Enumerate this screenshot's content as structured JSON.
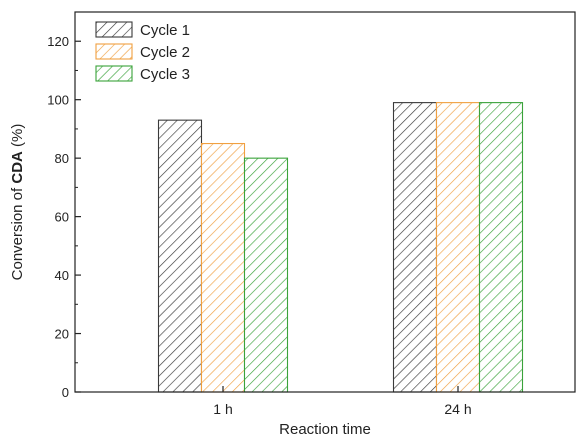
{
  "chart_data": {
    "type": "bar",
    "xlabel": "Reaction time",
    "ylabel_parts": [
      "Conversion of ",
      "CDA",
      " (%)"
    ],
    "categories": [
      "1 h",
      "24 h"
    ],
    "series": [
      {
        "name": "Cycle 1",
        "values": [
          93,
          99
        ],
        "color": "#3a3a3a"
      },
      {
        "name": "Cycle 2",
        "values": [
          85,
          99
        ],
        "color": "#f0a040"
      },
      {
        "name": "Cycle 3",
        "values": [
          80,
          99
        ],
        "color": "#3aa33a"
      }
    ],
    "ylim": [
      0,
      130
    ],
    "yticks": [
      0,
      20,
      40,
      60,
      80,
      100,
      120
    ],
    "legend_position": "top-left",
    "grid": false
  }
}
